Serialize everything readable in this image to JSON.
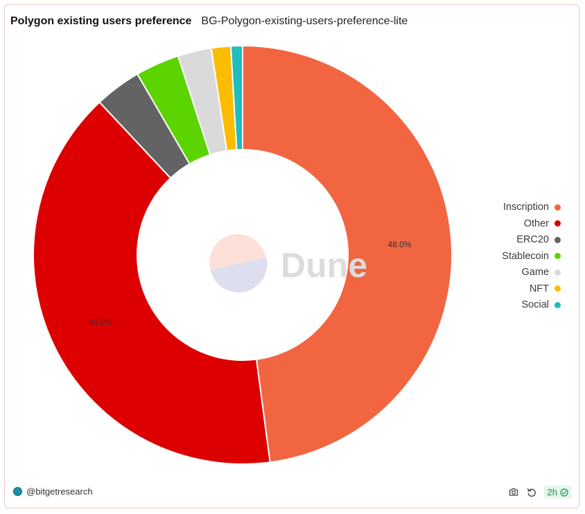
{
  "header": {
    "title": "Polygon existing users preference",
    "subtitle": "BG-Polygon-existing-users-preference-lite"
  },
  "chart_data": {
    "type": "pie",
    "donut": true,
    "legend_position": "right",
    "watermark": "Dune",
    "labels": [
      "Inscription",
      "Other",
      "ERC20",
      "Stablecoin",
      "Game",
      "NFT",
      "Social"
    ],
    "values": [
      48.0,
      40.2,
      3.6,
      3.4,
      2.6,
      1.5,
      0.9
    ],
    "data_labels": [
      "48.0%",
      "40.2%",
      "",
      "",
      "",
      "",
      ""
    ],
    "colors": [
      "#f26541",
      "#dd0000",
      "#636363",
      "#5cd400",
      "#dadada",
      "#fbbc04",
      "#1fbdbd"
    ]
  },
  "footer": {
    "handle": "@bitgetresearch",
    "refresh_age": "2h",
    "icons": [
      "camera-icon",
      "refresh-icon",
      "check-circle-icon",
      "user-avatar-icon"
    ]
  }
}
